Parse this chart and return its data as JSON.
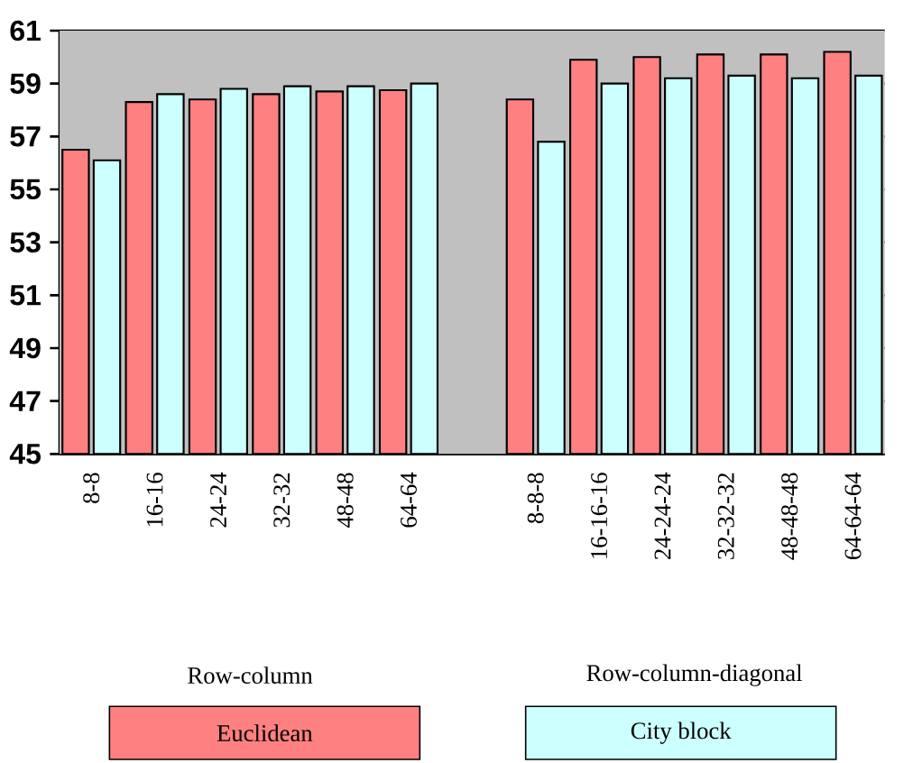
{
  "chart_data": {
    "type": "bar",
    "categories": [
      "8-8",
      "16-16",
      "24-24",
      "32-32",
      "48-48",
      "64-64",
      null,
      "8-8-8",
      "16-16-16",
      "24-24-24",
      "32-32-32",
      "48-48-48",
      "64-64-64"
    ],
    "series": [
      {
        "name": "Euclidean",
        "color": "#ff8080",
        "values": [
          56.5,
          58.3,
          58.4,
          58.6,
          58.7,
          58.75,
          null,
          58.4,
          59.9,
          60.0,
          60.1,
          60.1,
          60.2
        ]
      },
      {
        "name": "City block",
        "color": "#ccffff",
        "values": [
          56.1,
          58.6,
          58.8,
          58.9,
          58.9,
          59.0,
          null,
          56.8,
          59.0,
          59.2,
          59.3,
          59.2,
          59.3
        ]
      }
    ],
    "ylim": [
      45,
      61
    ],
    "yticks": [
      45,
      47,
      49,
      51,
      53,
      55,
      57,
      59,
      61
    ],
    "grid": "y",
    "legend": "bottom",
    "annotations": [
      "Row-column",
      "Row-column-diagonal"
    ]
  }
}
